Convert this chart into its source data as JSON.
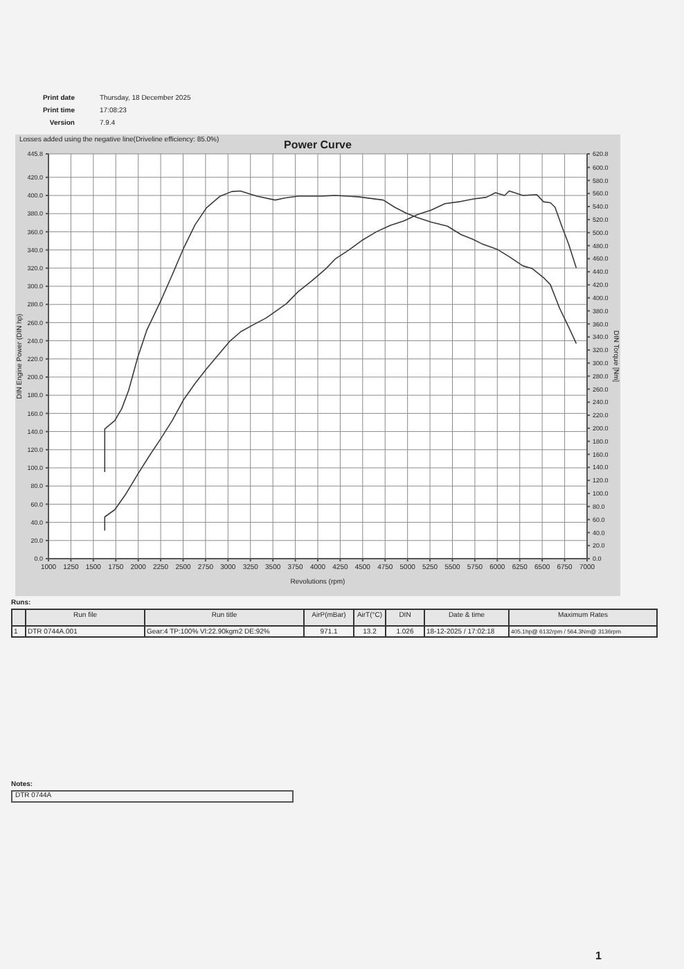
{
  "chart_data": {
    "type": "line",
    "title": "Power Curve",
    "subtitle": "Losses added using the negative line(Driveline efficiency: 85.0%)",
    "xlabel": "Revolutions (rpm)",
    "ylabel": "DIN Engine Power (DIN hp)",
    "y2label": "DIN Torque [Nm]",
    "xlim": [
      1000,
      7000
    ],
    "xticks": [
      1000,
      1250,
      1500,
      1750,
      2000,
      2250,
      2500,
      2750,
      3000,
      3250,
      3500,
      3750,
      4000,
      4250,
      4500,
      4750,
      5000,
      5250,
      5500,
      5750,
      6000,
      6250,
      6500,
      6750,
      7000
    ],
    "ylim": [
      0,
      445.8
    ],
    "yticks": [
      {
        "value": 0,
        "label": "0.0"
      },
      {
        "value": 20,
        "label": "20.0"
      },
      {
        "value": 40,
        "label": "40.0"
      },
      {
        "value": 60,
        "label": "60.0"
      },
      {
        "value": 80,
        "label": "80.0"
      },
      {
        "value": 100,
        "label": "100.0"
      },
      {
        "value": 120,
        "label": "120.0"
      },
      {
        "value": 140,
        "label": "140.0"
      },
      {
        "value": 160,
        "label": "160.0"
      },
      {
        "value": 180,
        "label": "180.0"
      },
      {
        "value": 200,
        "label": "200.0"
      },
      {
        "value": 220,
        "label": "220.0"
      },
      {
        "value": 240,
        "label": "240.0"
      },
      {
        "value": 260,
        "label": "260.0"
      },
      {
        "value": 280,
        "label": "280.0"
      },
      {
        "value": 300,
        "label": "300.0"
      },
      {
        "value": 320,
        "label": "320.0"
      },
      {
        "value": 340,
        "label": "340.0"
      },
      {
        "value": 360,
        "label": "360.0"
      },
      {
        "value": 380,
        "label": "380.0"
      },
      {
        "value": 400,
        "label": "400.0"
      },
      {
        "value": 420,
        "label": "420.0"
      },
      445.8
    ],
    "y2lim": [
      0,
      620.8
    ],
    "y2ticks": [
      {
        "value": 0,
        "label": "0.0"
      },
      {
        "value": 20,
        "label": "20.0"
      },
      {
        "value": 40,
        "label": "40.0"
      },
      {
        "value": 60,
        "label": "60.0"
      },
      {
        "value": 80,
        "label": "80.0"
      },
      {
        "value": 100,
        "label": "100.0"
      },
      {
        "value": 120,
        "label": "120.0"
      },
      {
        "value": 140,
        "label": "140.0"
      },
      {
        "value": 160,
        "label": "160.0"
      },
      {
        "value": 180,
        "label": "180.0"
      },
      {
        "value": 200,
        "label": "200.0"
      },
      {
        "value": 220,
        "label": "220.0"
      },
      {
        "value": 240,
        "label": "240.0"
      },
      {
        "value": 260,
        "label": "260.0"
      },
      {
        "value": 280,
        "label": "280.0"
      },
      {
        "value": 300,
        "label": "300.0"
      },
      {
        "value": 320,
        "label": "320.0"
      },
      {
        "value": 340,
        "label": "340.0"
      },
      {
        "value": 360,
        "label": "360.0"
      },
      {
        "value": 380,
        "label": "380.0"
      },
      {
        "value": 400,
        "label": "400.0"
      },
      {
        "value": 420,
        "label": "420.0"
      },
      {
        "value": 440,
        "label": "440.0"
      },
      {
        "value": 460,
        "label": "460.0"
      },
      {
        "value": 480,
        "label": "480.0"
      },
      {
        "value": 500,
        "label": "500.0"
      },
      {
        "value": 520,
        "label": "520.0"
      },
      {
        "value": 540,
        "label": "540.0"
      },
      {
        "value": 560,
        "label": "560.0"
      },
      {
        "value": 580,
        "label": "580.0"
      },
      {
        "value": 600,
        "label": "600.0"
      },
      620.8
    ],
    "grid": true,
    "series": [
      {
        "color": "#3a3a3a",
        "axis": "y",
        "x": [
          1627,
          1627,
          1740,
          1867,
          1995,
          2122,
          2250,
          2378,
          2505,
          2633,
          2760,
          2888,
          3015,
          3143,
          3270,
          3423,
          3526,
          3653,
          3781,
          3934,
          4087,
          4194,
          4347,
          4500,
          4653,
          4806,
          4959,
          5112,
          5265,
          5418,
          5571,
          5724,
          5878,
          5980,
          6082,
          6132,
          6286,
          6439,
          6515,
          6592,
          6643,
          6719,
          6796,
          6880
        ],
        "values": [
          31,
          46,
          54,
          72,
          93,
          113,
          132,
          152,
          175,
          193,
          209,
          224,
          239,
          250,
          257,
          265,
          272,
          281,
          294,
          306,
          319,
          330,
          340,
          351,
          360,
          367,
          372,
          379,
          384,
          391,
          393,
          396,
          398,
          403,
          400,
          405,
          400,
          401,
          393,
          392,
          387,
          366,
          346,
          320
        ]
      },
      {
        "color": "#3a3a3a",
        "axis": "y2",
        "x": [
          1627,
          1627,
          1740,
          1816,
          1893,
          1995,
          2097,
          2250,
          2378,
          2505,
          2633,
          2760,
          2913,
          3041,
          3136,
          3321,
          3526,
          3628,
          3781,
          4036,
          4194,
          4449,
          4730,
          4857,
          4985,
          5112,
          5265,
          5444,
          5597,
          5724,
          5827,
          6005,
          6133,
          6286,
          6388,
          6515,
          6592,
          6694,
          6796,
          6880
        ],
        "values": [
          133,
          199,
          212,
          230,
          258,
          309,
          351,
          395,
          435,
          476,
          512,
          538,
          556,
          563,
          564,
          556,
          550,
          553,
          556,
          556,
          557,
          555,
          550,
          539,
          530,
          523,
          516,
          510,
          497,
          490,
          483,
          474,
          463,
          449,
          445,
          431,
          420,
          384,
          355,
          330
        ]
      }
    ],
    "annotations": [
      "Print date",
      "Thursday, 18 December 2025",
      "Print time",
      "17:08:23",
      "Version",
      "7.9.4",
      "Runs:",
      "Run file",
      "Run title",
      "AirP(mBar)",
      "AirT(°C)",
      "DIN",
      "Date & time",
      "Maximum Rates",
      "1",
      "DTR 0744A.001",
      "Gear:4 TP:100% Vl:22.90kgm2 DE:92%",
      "971.1",
      "13.2",
      "1.026",
      "18-12-2025 / 17:02:18",
      "405.1hp@ 6132rpm / 564.3Nm@ 3136rpm",
      "Notes:",
      "DTR 0744A",
      "1"
    ]
  }
}
